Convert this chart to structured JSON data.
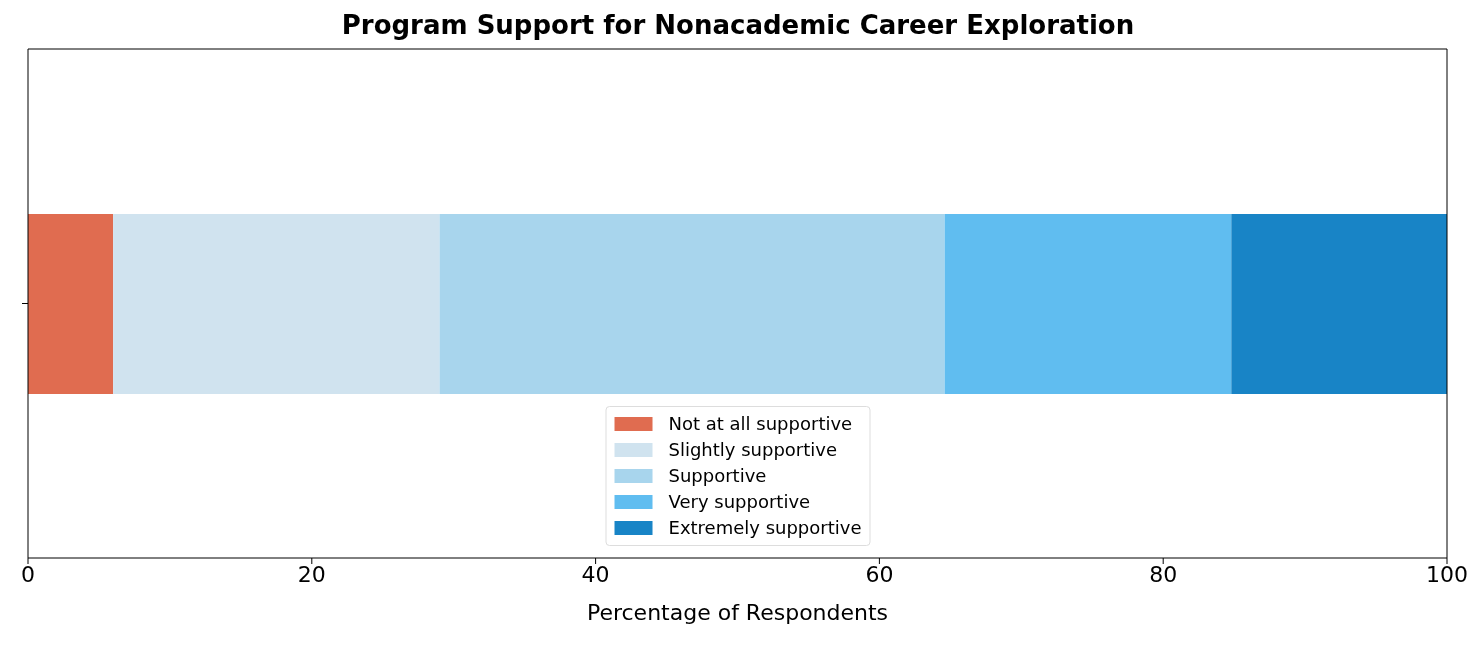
{
  "chart_data": {
    "type": "bar",
    "orientation": "horizontal",
    "stacked": true,
    "title": "Program Support for Nonacademic Career Exploration",
    "xlabel": "Percentage of Respondents",
    "categories": [
      null
    ],
    "series": [
      {
        "name": "Not at all supportive",
        "color": "#e06c50",
        "values": [
          6
        ]
      },
      {
        "name": "Slightly supportive",
        "color": "#d0e3ef",
        "values": [
          23
        ]
      },
      {
        "name": "Supportive",
        "color": "#a8d5ed",
        "values": [
          35.6
        ]
      },
      {
        "name": "Very supportive",
        "color": "#60bdf0",
        "values": [
          20.2
        ]
      },
      {
        "name": "Extremely supportive",
        "color": "#1884c6",
        "values": [
          15.2
        ]
      }
    ],
    "xlim": [
      0,
      100
    ],
    "xticks": [
      0,
      20,
      40,
      60,
      80,
      100
    ],
    "legend": "bottom",
    "grid": false
  }
}
